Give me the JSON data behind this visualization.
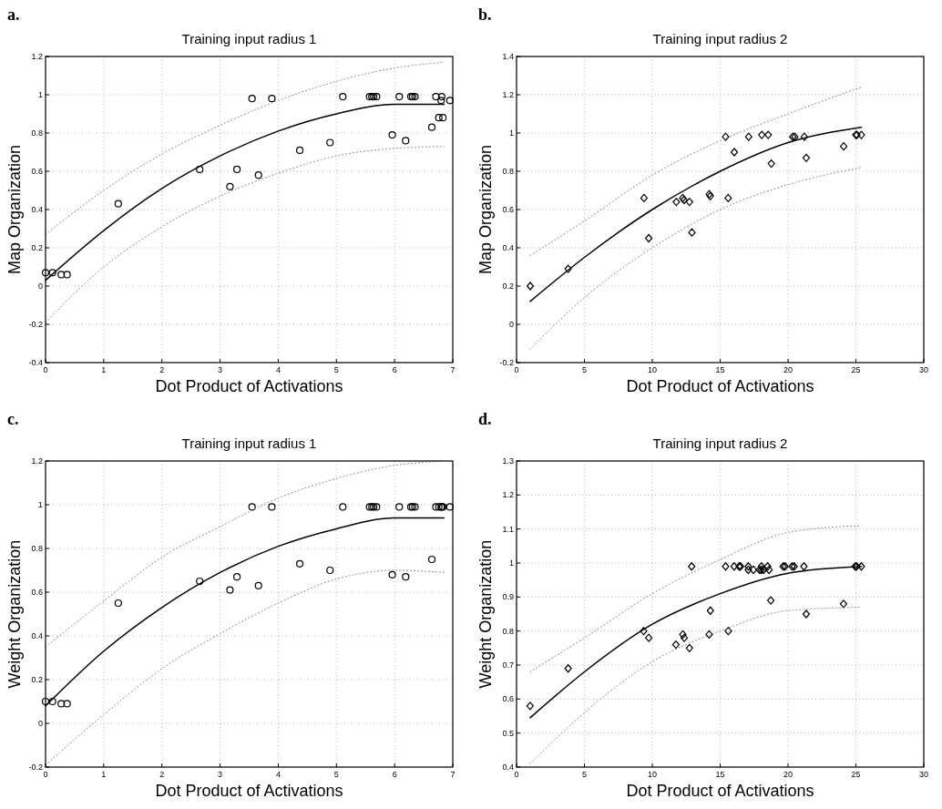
{
  "chart_data": [
    {
      "type": "scatter",
      "title": "Training input radius 1",
      "xlabel": "Dot Product of Activations",
      "ylabel": "Map Organization",
      "annotations": [
        "a."
      ],
      "xlim": [
        0,
        7
      ],
      "xticks": [
        0,
        1,
        2,
        3,
        4,
        5,
        6,
        7
      ],
      "ylim": [
        -0.4,
        1.2
      ],
      "yticks": [
        -0.4,
        -0.2,
        0,
        0.2,
        0.4,
        0.6,
        0.8,
        1,
        1.2
      ],
      "grid": true,
      "series": [
        {
          "color": "#000000",
          "marker": "circle",
          "x": [
            0,
            0.12,
            0.27,
            0.37,
            1.25,
            2.65,
            3.17,
            3.29,
            3.55,
            3.66,
            3.89,
            4.37,
            4.89,
            5.11,
            5.57,
            5.61,
            5.64,
            5.69,
            5.96,
            6.08,
            6.19,
            6.28,
            6.31,
            6.35,
            6.64,
            6.71,
            6.76,
            6.8,
            6.81,
            6.83,
            6.95
          ],
          "values": [
            0.07,
            0.07,
            0.06,
            0.06,
            0.43,
            0.61,
            0.52,
            0.61,
            0.98,
            0.58,
            0.98,
            0.71,
            0.75,
            0.99,
            0.99,
            0.99,
            0.99,
            0.99,
            0.79,
            0.99,
            0.76,
            0.99,
            0.99,
            0.99,
            0.83,
            0.99,
            0.88,
            0.97,
            0.99,
            0.88,
            0.97
          ]
        },
        {
          "type": "line",
          "color": "#000000",
          "line_style": "solid",
          "x": [
            0,
            1,
            2,
            3,
            4,
            5,
            6,
            6.85
          ],
          "values": [
            0.03,
            0.29,
            0.51,
            0.68,
            0.81,
            0.9,
            0.95,
            0.95
          ]
        },
        {
          "type": "line",
          "color": "#808080",
          "line_style": "dotted",
          "x": [
            0,
            1,
            2,
            3,
            4,
            5,
            6,
            6.85
          ],
          "values": [
            0.27,
            0.5,
            0.69,
            0.84,
            0.97,
            1.07,
            1.14,
            1.17
          ]
        },
        {
          "type": "line",
          "color": "#808080",
          "line_style": "dotted",
          "x": [
            0,
            1,
            2,
            3,
            4,
            5,
            6,
            6.85
          ],
          "values": [
            -0.19,
            0.1,
            0.31,
            0.47,
            0.59,
            0.68,
            0.72,
            0.73
          ]
        }
      ]
    },
    {
      "type": "scatter",
      "title": "Training input radius 2",
      "xlabel": "Dot Product of Activations",
      "ylabel": "Map Organization",
      "annotations": [
        "b."
      ],
      "xlim": [
        0,
        30
      ],
      "xticks": [
        0,
        5,
        10,
        15,
        20,
        25,
        30
      ],
      "ylim": [
        -0.2,
        1.4
      ],
      "yticks": [
        -0.2,
        0,
        0.2,
        0.4,
        0.6,
        0.8,
        1,
        1.2,
        1.4
      ],
      "grid": true,
      "series": [
        {
          "color": "#000000",
          "marker": "diamond",
          "x": [
            1.01,
            3.8,
            9.39,
            9.74,
            11.77,
            12.24,
            12.34,
            12.74,
            12.92,
            14.2,
            14.27,
            15.4,
            15.59,
            16.04,
            17.1,
            18.07,
            18.54,
            18.77,
            20.35,
            20.5,
            21.2,
            21.34,
            24.1,
            25,
            25.07,
            25.4
          ],
          "values": [
            0.2,
            0.29,
            0.66,
            0.45,
            0.64,
            0.66,
            0.65,
            0.64,
            0.48,
            0.68,
            0.67,
            0.98,
            0.66,
            0.9,
            0.98,
            0.99,
            0.99,
            0.84,
            0.98,
            0.98,
            0.98,
            0.87,
            0.93,
            0.99,
            0.99,
            0.99
          ]
        },
        {
          "type": "line",
          "color": "#000000",
          "line_style": "solid",
          "x": [
            1,
            5,
            10,
            15,
            20,
            25.4
          ],
          "values": [
            0.12,
            0.35,
            0.6,
            0.8,
            0.95,
            1.03
          ]
        },
        {
          "type": "line",
          "color": "#808080",
          "line_style": "dotted",
          "x": [
            1,
            5,
            10,
            15,
            20,
            25.4
          ],
          "values": [
            0.36,
            0.54,
            0.78,
            0.96,
            1.1,
            1.24
          ]
        },
        {
          "type": "line",
          "color": "#808080",
          "line_style": "dotted",
          "x": [
            1,
            5,
            10,
            15,
            20,
            25.4
          ],
          "values": [
            -0.13,
            0.14,
            0.4,
            0.6,
            0.73,
            0.82
          ]
        }
      ]
    },
    {
      "type": "scatter",
      "title": "Training input radius 1",
      "xlabel": "Dot Product of Activations",
      "ylabel": "Weight Organization",
      "annotations": [
        "c."
      ],
      "xlim": [
        0,
        7
      ],
      "xticks": [
        0,
        1,
        2,
        3,
        4,
        5,
        6,
        7
      ],
      "ylim": [
        -0.2,
        1.2
      ],
      "yticks": [
        -0.2,
        0,
        0.2,
        0.4,
        0.6,
        0.8,
        1,
        1.2
      ],
      "grid": true,
      "series": [
        {
          "color": "#000000",
          "marker": "circle",
          "x": [
            0,
            0.12,
            0.27,
            0.37,
            1.25,
            2.65,
            3.17,
            3.29,
            3.55,
            3.66,
            3.89,
            4.37,
            4.89,
            5.11,
            5.57,
            5.61,
            5.64,
            5.69,
            5.96,
            6.08,
            6.19,
            6.28,
            6.31,
            6.35,
            6.64,
            6.71,
            6.76,
            6.8,
            6.81,
            6.83,
            6.95
          ],
          "values": [
            0.1,
            0.1,
            0.09,
            0.09,
            0.55,
            0.65,
            0.61,
            0.67,
            0.99,
            0.63,
            0.99,
            0.73,
            0.7,
            0.99,
            0.99,
            0.99,
            0.99,
            0.99,
            0.68,
            0.99,
            0.67,
            0.99,
            0.99,
            0.99,
            0.75,
            0.99,
            0.99,
            0.99,
            0.99,
            0.99,
            0.99
          ]
        },
        {
          "type": "line",
          "color": "#000000",
          "line_style": "solid",
          "x": [
            0,
            1,
            2,
            3,
            4,
            5,
            6,
            6.85
          ],
          "values": [
            0.08,
            0.33,
            0.53,
            0.69,
            0.81,
            0.89,
            0.94,
            0.94
          ]
        },
        {
          "type": "line",
          "color": "#808080",
          "line_style": "dotted",
          "x": [
            0,
            1,
            2,
            3,
            4,
            5,
            6,
            6.85
          ],
          "values": [
            0.35,
            0.56,
            0.76,
            0.9,
            1.03,
            1.12,
            1.18,
            1.2
          ]
        },
        {
          "type": "line",
          "color": "#808080",
          "line_style": "dotted",
          "x": [
            0,
            1,
            2,
            3,
            4,
            5,
            6,
            6.85
          ],
          "values": [
            -0.19,
            0.04,
            0.25,
            0.41,
            0.55,
            0.66,
            0.7,
            0.69
          ]
        }
      ]
    },
    {
      "type": "scatter",
      "title": "Training input radius 2",
      "xlabel": "Dot Product of Activations",
      "ylabel": "Weight Organization",
      "annotations": [
        "d."
      ],
      "xlim": [
        0,
        30
      ],
      "xticks": [
        0,
        5,
        10,
        15,
        20,
        25,
        30
      ],
      "ylim": [
        0.4,
        1.3
      ],
      "yticks": [
        0.4,
        0.5,
        0.6,
        0.7,
        0.8,
        0.9,
        1,
        1.1,
        1.2,
        1.3
      ],
      "grid": true,
      "series": [
        {
          "color": "#000000",
          "marker": "diamond",
          "x": [
            1,
            3.8,
            9.36,
            9.74,
            11.74,
            12.25,
            12.35,
            12.74,
            12.9,
            14.19,
            14.28,
            15.4,
            15.6,
            16.03,
            16.4,
            16.5,
            17.07,
            17.07,
            17.45,
            17.9,
            18.04,
            18.04,
            18.2,
            18.5,
            18.6,
            18.73,
            19.64,
            19.78,
            20.3,
            20.45,
            21.17,
            21.34,
            24.09,
            24.95,
            25.05,
            25.4
          ],
          "values": [
            0.58,
            0.69,
            0.8,
            0.78,
            0.76,
            0.79,
            0.78,
            0.75,
            0.99,
            0.79,
            0.86,
            0.99,
            0.8,
            0.99,
            0.99,
            0.99,
            0.99,
            0.98,
            0.98,
            0.98,
            0.99,
            0.98,
            0.98,
            0.99,
            0.98,
            0.89,
            0.99,
            0.99,
            0.99,
            0.99,
            0.99,
            0.85,
            0.88,
            0.99,
            0.99,
            0.99
          ]
        },
        {
          "type": "line",
          "color": "#000000",
          "line_style": "solid",
          "x": [
            1,
            5,
            10,
            15,
            20,
            25.4
          ],
          "values": [
            0.545,
            0.68,
            0.82,
            0.91,
            0.97,
            0.99
          ]
        },
        {
          "type": "line",
          "color": "#808080",
          "line_style": "dotted",
          "x": [
            1,
            5,
            10,
            15,
            20,
            25.4
          ],
          "values": [
            0.68,
            0.78,
            0.91,
            1.01,
            1.09,
            1.11
          ]
        },
        {
          "type": "line",
          "color": "#808080",
          "line_style": "dotted",
          "x": [
            1,
            5,
            10,
            15,
            20,
            25.4
          ],
          "values": [
            0.41,
            0.56,
            0.71,
            0.8,
            0.86,
            0.87
          ]
        }
      ]
    }
  ]
}
